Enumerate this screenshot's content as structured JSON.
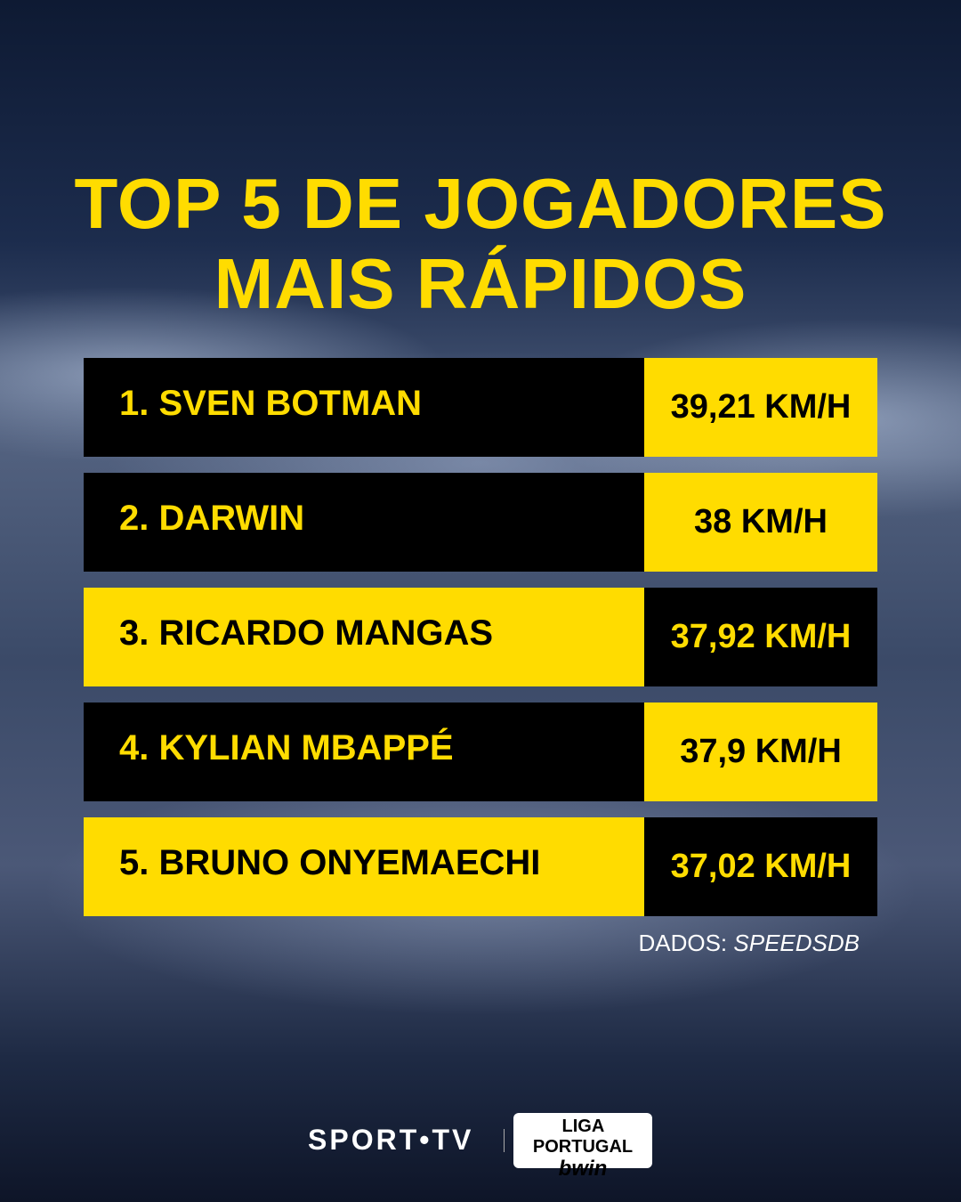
{
  "header": {
    "title_lines": [
      "TOP 5 DE JOGADORES",
      "MAIS RÁPIDOS"
    ]
  },
  "table": {
    "rows": [
      [
        "1. SVEN BOTMAN",
        "39,21 KM/H"
      ],
      [
        "2. DARWIN",
        "38 KM/H"
      ],
      [
        "3. RICARDO MANGAS",
        "37,92 KM/H"
      ],
      [
        "4. KYLIAN MBAPPÉ",
        "37,9 KM/H"
      ],
      [
        "5. BRUNO ONYEMAECHI",
        "37,02 KM/H"
      ]
    ]
  },
  "source": {
    "label": "DADOS:",
    "name": "SPEEDSDB"
  },
  "footer": {
    "sport_tv": "SPORT•TV",
    "liga_top": "LIGA",
    "liga_name": "PORTUGAL",
    "liga_sponsor": "bwin"
  }
}
